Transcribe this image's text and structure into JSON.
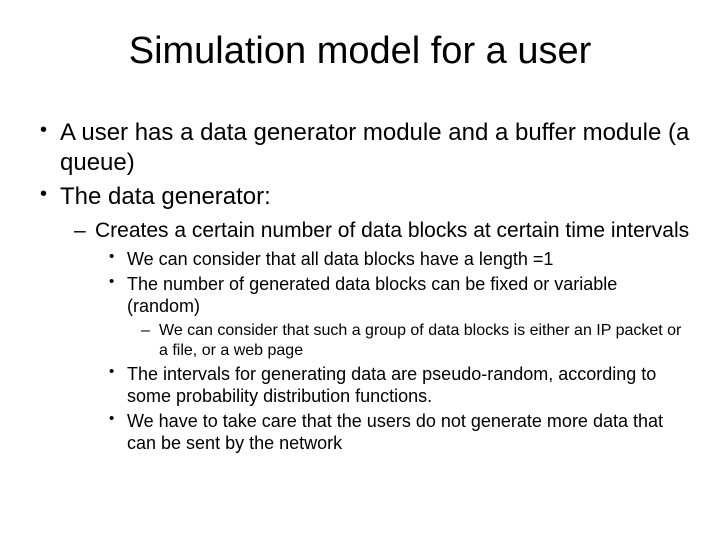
{
  "title": "Simulation model for a user",
  "bullets": {
    "l1_1": "A user has a data generator module and a buffer module (a queue)",
    "l1_2": "The data generator:",
    "l2_1": "Creates a certain number of data blocks at certain time intervals",
    "l3_1": "We can consider that all data blocks have a length =1",
    "l3_2": "The number of generated data blocks can be fixed or variable (random)",
    "l4_1": "We can consider that such a group of data blocks is either an IP packet or a file, or a web page",
    "l3_3": "The intervals for generating data are pseudo-random, according to some probability distribution functions.",
    "l3_4": "We have to take care that the users do not generate more data that can be sent by the network"
  },
  "styling": {
    "background_color": "#ffffff",
    "text_color": "#000000",
    "title_fontsize": 38,
    "l1_fontsize": 24,
    "l2_fontsize": 21,
    "l3_fontsize": 18,
    "l4_fontsize": 16,
    "font_family": "Arial"
  }
}
